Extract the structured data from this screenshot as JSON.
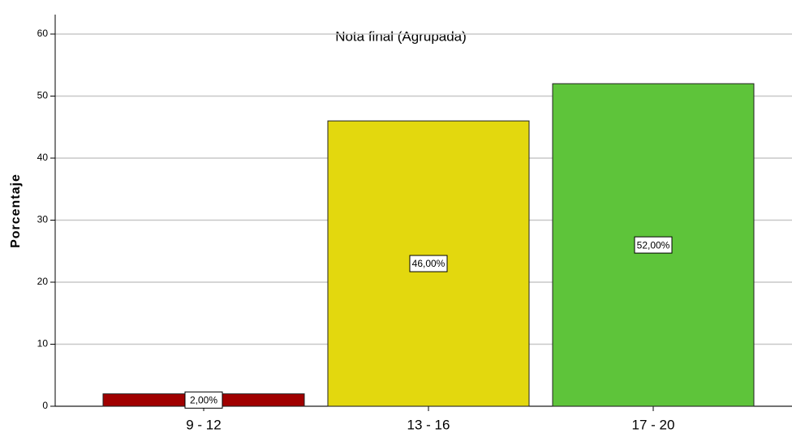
{
  "chart_data": {
    "type": "bar",
    "title": "Nota final (Agrupada)",
    "y_label": "Porcentaje",
    "categories": [
      "9 - 12",
      "13 - 16",
      "17 - 20"
    ],
    "values": [
      2,
      46,
      52
    ],
    "value_labels": [
      "2,00%",
      "46,00%",
      "52,00%"
    ],
    "colors": [
      "#a00000",
      "#e3d80e",
      "#5ec43a"
    ],
    "ylim": [
      0,
      60
    ],
    "yticks": [
      0,
      10,
      20,
      30,
      40,
      50,
      60
    ],
    "grid": true
  }
}
